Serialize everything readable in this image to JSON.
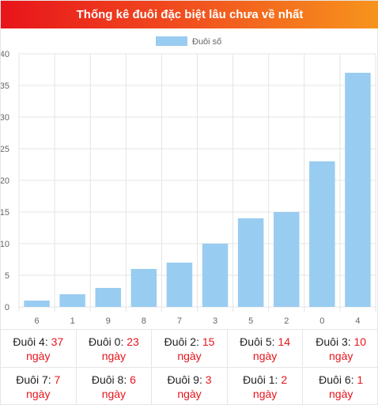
{
  "title": "Thống kê đuôi đặc biệt lâu chưa về nhất",
  "chart_data": {
    "type": "bar",
    "categories": [
      "6",
      "1",
      "9",
      "8",
      "7",
      "3",
      "5",
      "2",
      "0",
      "4"
    ],
    "series": [
      {
        "name": "Đuôi số",
        "values": [
          1,
          2,
          3,
          6,
          7,
          10,
          14,
          15,
          23,
          37
        ]
      }
    ],
    "ylim": [
      0,
      40
    ],
    "yticks": [
      0,
      5,
      10,
      15,
      20,
      25,
      30,
      35,
      40
    ],
    "bar_color": "#99ccf1",
    "grid": true,
    "legend_position": "top-center"
  },
  "stats": [
    {
      "label": "Đuôi 4:",
      "value": "37",
      "unit": "ngày"
    },
    {
      "label": "Đuôi 0:",
      "value": "23",
      "unit": "ngày"
    },
    {
      "label": "Đuôi 2:",
      "value": "15",
      "unit": "ngày"
    },
    {
      "label": "Đuôi 5:",
      "value": "14",
      "unit": "ngày"
    },
    {
      "label": "Đuôi 3:",
      "value": "10",
      "unit": "ngày"
    },
    {
      "label": "Đuôi 7:",
      "value": "7",
      "unit": "ngày"
    },
    {
      "label": "Đuôi 8:",
      "value": "6",
      "unit": "ngày"
    },
    {
      "label": "Đuôi 9:",
      "value": "3",
      "unit": "ngày"
    },
    {
      "label": "Đuôi 1:",
      "value": "2",
      "unit": "ngày"
    },
    {
      "label": "Đuôi 6:",
      "value": "1",
      "unit": "ngày"
    }
  ]
}
